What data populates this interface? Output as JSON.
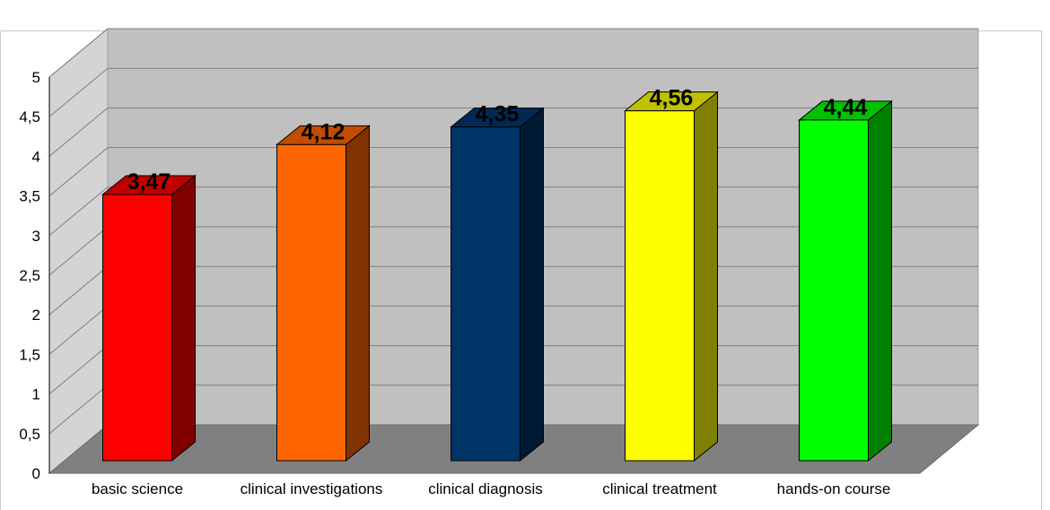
{
  "chart_data": {
    "type": "bar",
    "categories": [
      "basic science",
      "clinical investigations",
      "clinical diagnosis",
      "clinical treatment",
      "hands-on course"
    ],
    "values": [
      3.47,
      4.12,
      4.35,
      4.56,
      4.44
    ],
    "value_labels": [
      "3,47",
      "4,12",
      "4,35",
      "4,56",
      "4,44"
    ],
    "title": "",
    "xlabel": "",
    "ylabel": "",
    "ylim": [
      0,
      5
    ],
    "yticks": [
      0,
      0.5,
      1,
      1.5,
      2,
      2.5,
      3,
      3.5,
      4,
      4.5,
      5
    ],
    "ytick_labels": [
      "0",
      "0,5",
      "1",
      "1,5",
      "2",
      "2,5",
      "3",
      "3,5",
      "4",
      "4,5",
      "5"
    ],
    "grid": true,
    "style": "3d",
    "colors": {
      "fronts": [
        "#ff0000",
        "#ff6600",
        "#003366",
        "#ffff00",
        "#00ff00"
      ],
      "sides": [
        "#800000",
        "#803300",
        "#001a33",
        "#808000",
        "#008000"
      ],
      "tops": [
        "#c00000",
        "#c04d00",
        "#002a55",
        "#c0c000",
        "#00c000"
      ],
      "back_wall": "#c0c0c0",
      "side_wall": "#d4d4d4",
      "floor": "#808080",
      "gridline": "#7f7f7f"
    }
  }
}
